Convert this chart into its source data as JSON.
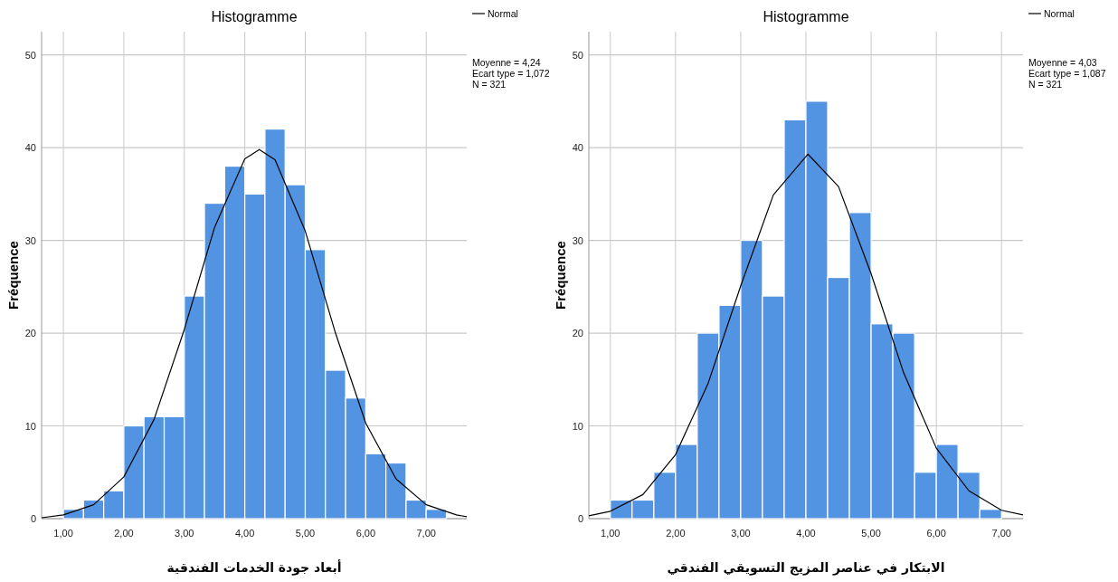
{
  "chart_data": [
    {
      "type": "histogram",
      "title": "Histogramme",
      "xlabel": "أبعاد جودة الخدمات الفندقية",
      "ylabel": "Fréquence",
      "bins": [
        1.0,
        1.333,
        1.667,
        2.0,
        2.333,
        2.667,
        3.0,
        3.333,
        3.667,
        4.0,
        4.333,
        4.667,
        5.0,
        5.333,
        5.667,
        6.0,
        6.333,
        6.667,
        7.0,
        7.333
      ],
      "series": [
        {
          "type": "histogram",
          "color": "#5294e2",
          "values": [
            1,
            2,
            3,
            10,
            11,
            11,
            24,
            34,
            38,
            35,
            42,
            36,
            29,
            16,
            13,
            7,
            6,
            2,
            1
          ]
        },
        {
          "type": "line",
          "name": "Normal",
          "color": "#000000",
          "x": [
            0.64,
            1.0,
            1.5,
            2.0,
            2.5,
            3.0,
            3.5,
            4.0,
            4.24,
            4.5,
            5.0,
            5.5,
            6.0,
            6.5,
            7.0,
            7.5,
            7.67
          ],
          "values": [
            0.1,
            0.4,
            1.5,
            4.5,
            10.7,
            20.4,
            31.4,
            38.8,
            39.8,
            38.7,
            31.0,
            20.0,
            10.3,
            4.3,
            1.5,
            0.4,
            0.2
          ]
        }
      ],
      "xlim": [
        0.64,
        7.67
      ],
      "ylim": [
        0,
        52.5
      ],
      "xticks": [
        {
          "value": 1,
          "label": "1,00"
        },
        {
          "value": 2,
          "label": "2,00"
        },
        {
          "value": 3,
          "label": "3,00"
        },
        {
          "value": 4,
          "label": "4,00"
        },
        {
          "value": 5,
          "label": "5,00"
        },
        {
          "value": 6,
          "label": "6,00"
        },
        {
          "value": 7,
          "label": "7,00"
        }
      ],
      "yticks": [
        0,
        10,
        20,
        30,
        40,
        50
      ],
      "grid": true,
      "legend": "top right",
      "annotations": [
        "Moyenne = 4,24",
        "Ecart type = 1,072",
        "N = 321"
      ]
    },
    {
      "type": "histogram",
      "title": "Histogramme",
      "xlabel": "الابتكار في عناصر المزيج التسويقي الفندقي",
      "ylabel": "Fréquence",
      "bins": [
        1.0,
        1.333,
        1.667,
        2.0,
        2.333,
        2.667,
        3.0,
        3.333,
        3.667,
        4.0,
        4.333,
        4.667,
        5.0,
        5.333,
        5.667,
        6.0,
        6.333,
        6.667,
        7.0
      ],
      "series": [
        {
          "type": "histogram",
          "color": "#5294e2",
          "values": [
            2,
            2,
            5,
            8,
            20,
            23,
            30,
            24,
            43,
            45,
            26,
            33,
            21,
            20,
            5,
            8,
            5,
            1
          ]
        },
        {
          "type": "line",
          "name": "Normal",
          "color": "#000000",
          "x": [
            0.67,
            1.0,
            1.5,
            2.0,
            2.5,
            3.0,
            3.5,
            4.03,
            4.5,
            5.0,
            5.5,
            6.0,
            6.5,
            7.0,
            7.33
          ],
          "values": [
            0.3,
            0.8,
            2.6,
            6.9,
            14.6,
            25.1,
            34.9,
            39.3,
            35.8,
            26.4,
            15.7,
            7.6,
            3.0,
            0.9,
            0.4
          ]
        }
      ],
      "xlim": [
        0.67,
        7.33
      ],
      "ylim": [
        0,
        52.5
      ],
      "xticks": [
        {
          "value": 1,
          "label": "1,00"
        },
        {
          "value": 2,
          "label": "2,00"
        },
        {
          "value": 3,
          "label": "3,00"
        },
        {
          "value": 4,
          "label": "4,00"
        },
        {
          "value": 5,
          "label": "5,00"
        },
        {
          "value": 6,
          "label": "6,00"
        },
        {
          "value": 7,
          "label": "7,00"
        }
      ],
      "yticks": [
        0,
        10,
        20,
        30,
        40,
        50
      ],
      "grid": true,
      "legend": "top right",
      "annotations": [
        "Moyenne = 4,03",
        "Ecart type = 1,087",
        "N = 321"
      ]
    }
  ]
}
